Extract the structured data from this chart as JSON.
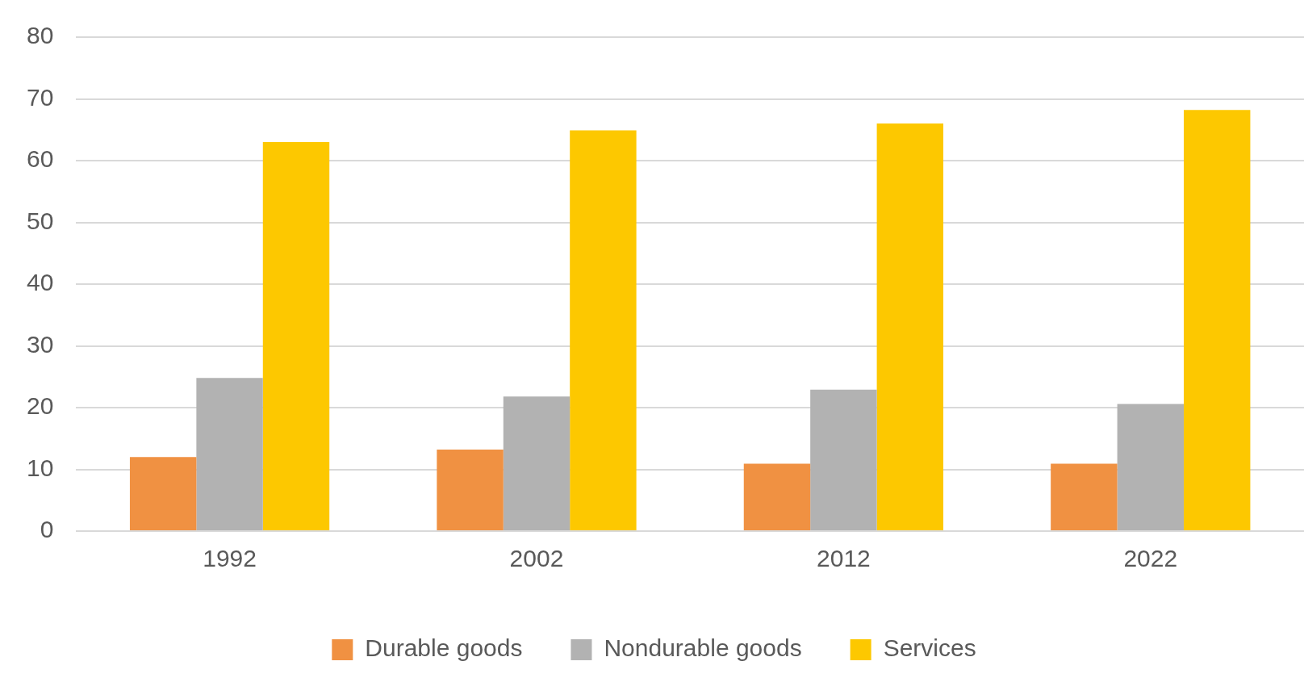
{
  "chart_data": {
    "type": "bar",
    "categories": [
      "1992",
      "2002",
      "2012",
      "2022"
    ],
    "series": [
      {
        "name": "Durable goods",
        "color": "#f09142",
        "values": [
          12.0,
          13.2,
          10.9,
          10.9
        ]
      },
      {
        "name": "Nondurable goods",
        "color": "#b2b2b2",
        "values": [
          24.8,
          21.8,
          22.9,
          20.6
        ]
      },
      {
        "name": "Services",
        "color": "#fdc800",
        "values": [
          63.0,
          64.9,
          66.0,
          68.2
        ]
      }
    ],
    "ylim": [
      0,
      80
    ],
    "yticks": [
      0,
      10,
      20,
      30,
      40,
      50,
      60,
      70,
      80
    ],
    "grid": "y",
    "legend": "bottom"
  }
}
